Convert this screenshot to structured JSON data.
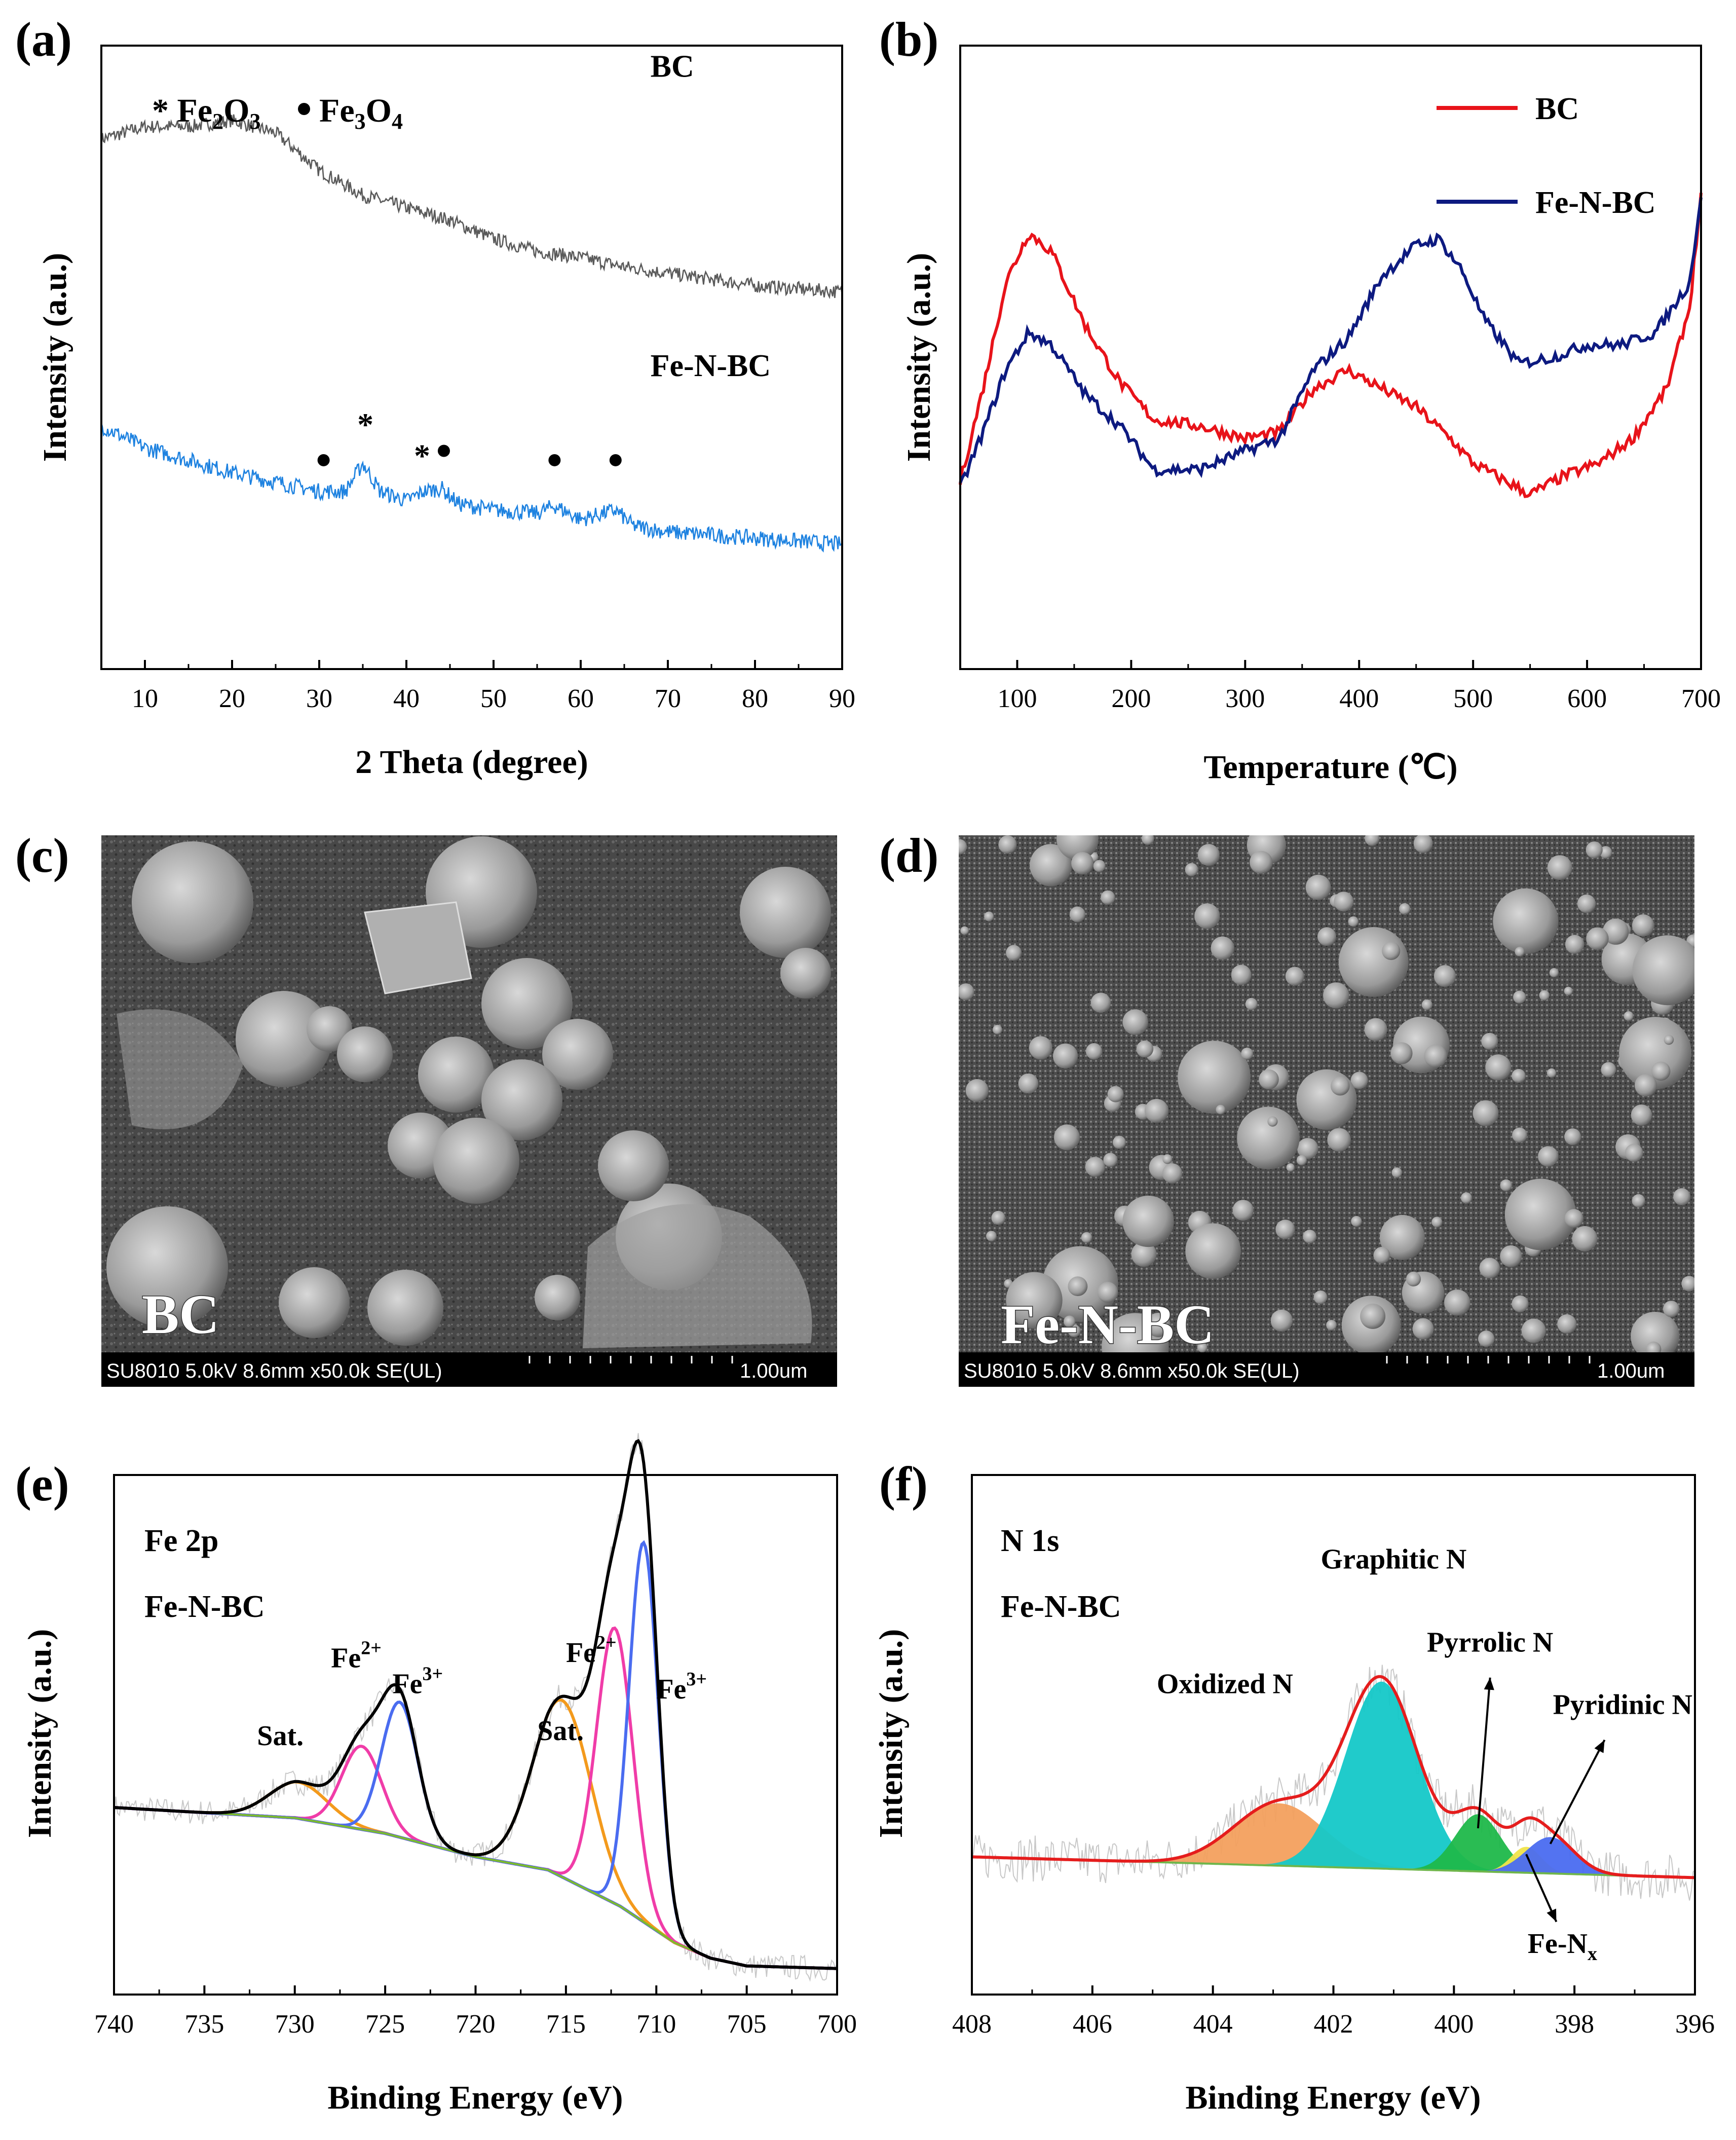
{
  "colors": {
    "bc_xrd": "#5a5a5a",
    "fenbc_xrd": "#1e82e0",
    "bc_tpd": "#e8131a",
    "fenbc_tpd": "#0d1a80",
    "fe2p_envelope": "#000000",
    "fe2p_fe3": "#4a6cf0",
    "fe2p_fe2": "#f03ca8",
    "fe2p_sat": "#f39a1c",
    "fe2p_bg": "#7dbb2c",
    "n1s_envelope": "#e51d1d",
    "n1s_oxidized": "#f3a05e",
    "n1s_graphitic": "#14c8c8",
    "n1s_pyrrolic": "#1fb84a",
    "n1s_fenx": "#f1e44a",
    "n1s_pyridinic": "#4a6cf0",
    "n1s_baseline": "#6fb64b"
  },
  "panels": {
    "a": {
      "label": "(a)"
    },
    "b": {
      "label": "(b)"
    },
    "c": {
      "label": "(c)",
      "sample": "BC",
      "info": "SU8010 5.0kV 8.6mm x50.0k SE(UL)",
      "scale": "1.00um"
    },
    "d": {
      "label": "(d)",
      "sample": "Fe-N-BC",
      "info": "SU8010 5.0kV 8.6mm x50.0k SE(UL)",
      "scale": "1.00um"
    },
    "e": {
      "label": "(e)"
    },
    "f": {
      "label": "(f)"
    }
  },
  "chart_data": [
    {
      "id": "a",
      "type": "line",
      "title": "",
      "xlabel": "2 Theta (degree)",
      "ylabel": "Intensity (a.u.)",
      "xlim": [
        5,
        90
      ],
      "xticks": [
        10,
        20,
        30,
        40,
        50,
        60,
        70,
        80,
        90
      ],
      "legend_note": {
        "star": "* Fe",
        "star_sub1": "2",
        "star_mid": "O",
        "star_sub2": "3",
        "dot": "Fe",
        "dot_sub1": "3",
        "dot_mid": "O",
        "dot_sub2": "4"
      },
      "series": [
        {
          "name": "BC",
          "x": [
            5,
            10,
            15,
            20,
            25,
            30,
            35,
            40,
            45,
            50,
            55,
            60,
            65,
            70,
            75,
            80,
            85,
            90
          ],
          "y": [
            0.85,
            0.87,
            0.87,
            0.88,
            0.86,
            0.8,
            0.76,
            0.74,
            0.72,
            0.69,
            0.67,
            0.66,
            0.645,
            0.635,
            0.625,
            0.615,
            0.61,
            0.605
          ]
        },
        {
          "name": "Fe-N-BC",
          "x": [
            5,
            10,
            15,
            20,
            25,
            30,
            33,
            35,
            37,
            40,
            42,
            44,
            46,
            50,
            55,
            57,
            60,
            64,
            66,
            70,
            75,
            80,
            85,
            90
          ],
          "y": [
            0.39,
            0.355,
            0.335,
            0.315,
            0.3,
            0.285,
            0.285,
            0.33,
            0.285,
            0.27,
            0.285,
            0.29,
            0.265,
            0.255,
            0.25,
            0.262,
            0.24,
            0.255,
            0.23,
            0.22,
            0.215,
            0.21,
            0.205,
            0.2
          ]
        }
      ],
      "markers": [
        {
          "symbol": "●",
          "x": 30.5,
          "y": 0.335
        },
        {
          "symbol": "*",
          "x": 35.3,
          "y": 0.395
        },
        {
          "symbol": "*",
          "x": 41.8,
          "y": 0.345
        },
        {
          "symbol": "●",
          "x": 44.3,
          "y": 0.35
        },
        {
          "symbol": "●",
          "x": 57.0,
          "y": 0.335
        },
        {
          "symbol": "●",
          "x": 64.0,
          "y": 0.335
        }
      ],
      "series_labels": [
        {
          "text": "BC",
          "x": 68,
          "y": 0.95
        },
        {
          "text": "Fe-N-BC",
          "x": 68,
          "y": 0.47
        }
      ]
    },
    {
      "id": "b",
      "type": "line",
      "title": "",
      "xlabel": "Temperature (℃)",
      "ylabel": "Intensity (a.u.)",
      "xlim": [
        50,
        700
      ],
      "xticks": [
        100,
        200,
        300,
        400,
        500,
        600,
        700
      ],
      "legend": [
        "BC",
        "Fe-N-BC"
      ],
      "series": [
        {
          "name": "BC",
          "x": [
            50,
            70,
            90,
            110,
            130,
            160,
            190,
            220,
            260,
            300,
            330,
            360,
            390,
            420,
            450,
            480,
            500,
            520,
            550,
            580,
            610,
            640,
            670,
            690,
            700
          ],
          "y": [
            0.3,
            0.45,
            0.62,
            0.7,
            0.67,
            0.55,
            0.46,
            0.4,
            0.39,
            0.37,
            0.38,
            0.45,
            0.48,
            0.45,
            0.42,
            0.37,
            0.33,
            0.31,
            0.28,
            0.31,
            0.33,
            0.37,
            0.45,
            0.58,
            0.76
          ]
        },
        {
          "name": "Fe-N-BC",
          "x": [
            50,
            70,
            90,
            110,
            130,
            160,
            190,
            220,
            260,
            300,
            330,
            360,
            390,
            420,
            450,
            470,
            490,
            510,
            540,
            570,
            600,
            630,
            660,
            690,
            700
          ],
          "y": [
            0.29,
            0.38,
            0.48,
            0.54,
            0.52,
            0.44,
            0.39,
            0.32,
            0.32,
            0.35,
            0.37,
            0.48,
            0.53,
            0.63,
            0.68,
            0.69,
            0.64,
            0.56,
            0.49,
            0.5,
            0.52,
            0.52,
            0.54,
            0.62,
            0.76
          ]
        }
      ]
    },
    {
      "id": "e",
      "type": "line",
      "title": "Fe 2p",
      "subtitle": "Fe-N-BC",
      "xlabel": "Binding Energy (eV)",
      "ylabel": "Intensity (a.u.)",
      "xlim": [
        740,
        700
      ],
      "xticks": [
        740,
        735,
        730,
        725,
        720,
        715,
        710,
        705,
        700
      ],
      "background": {
        "x": [
          740,
          730,
          725,
          720,
          716,
          712,
          709,
          707,
          705,
          700
        ],
        "y": [
          0.36,
          0.34,
          0.31,
          0.265,
          0.24,
          0.17,
          0.1,
          0.07,
          0.055,
          0.05
        ]
      },
      "peaks": [
        {
          "name": "Sat.",
          "center": 729.8,
          "height": 0.07,
          "width": 1.6,
          "color_key": "fe2p_sat"
        },
        {
          "name": "Fe2+",
          "center": 726.3,
          "height": 0.16,
          "width": 1.1,
          "color_key": "fe2p_fe2"
        },
        {
          "name": "Fe3+",
          "center": 724.2,
          "height": 0.26,
          "width": 1.0,
          "color_key": "fe2p_fe3"
        },
        {
          "name": "Sat.",
          "center": 715.2,
          "height": 0.34,
          "width": 1.6,
          "color_key": "fe2p_sat"
        },
        {
          "name": "Fe2+",
          "center": 712.3,
          "height": 0.53,
          "width": 1.0,
          "color_key": "fe2p_fe2"
        },
        {
          "name": "Fe3+",
          "center": 710.7,
          "height": 0.73,
          "width": 0.8,
          "color_key": "fe2p_fe3"
        }
      ],
      "annotations": [
        {
          "text": "Sat.",
          "sup": "",
          "x": 730.8,
          "y": 0.48,
          "color_key": "fe2p_sat"
        },
        {
          "text": "Fe",
          "sup": "2+",
          "x": 726.6,
          "y": 0.63,
          "color_key": "fe2p_fe2"
        },
        {
          "text": "Fe",
          "sup": "3+",
          "x": 723.2,
          "y": 0.58,
          "color_key": "fe2p_fe3"
        },
        {
          "text": "Sat.",
          "sup": "",
          "x": 715.3,
          "y": 0.49,
          "color_key": "fe2p_sat"
        },
        {
          "text": "Fe",
          "sup": "2+",
          "x": 713.6,
          "y": 0.64,
          "color_key": "fe2p_fe2"
        },
        {
          "text": "Fe",
          "sup": "3+",
          "x": 708.6,
          "y": 0.57,
          "color_key": "fe2p_fe3"
        }
      ]
    },
    {
      "id": "f",
      "type": "line",
      "title": "N 1s",
      "subtitle": "Fe-N-BC",
      "xlabel": "Binding Energy (eV)",
      "ylabel": "Intensity (a.u.)",
      "xlim": [
        408,
        396
      ],
      "xticks": [
        408,
        406,
        404,
        402,
        400,
        398,
        396
      ],
      "background": {
        "x": [
          408,
          396
        ],
        "y": [
          0.265,
          0.225
        ]
      },
      "peaks": [
        {
          "name": "Oxidized N",
          "center": 402.9,
          "height": 0.12,
          "width": 0.75,
          "color_key": "n1s_oxidized"
        },
        {
          "name": "Graphitic N",
          "center": 401.2,
          "height": 0.36,
          "width": 0.6,
          "color_key": "n1s_graphitic"
        },
        {
          "name": "Pyrrolic N",
          "center": 399.6,
          "height": 0.11,
          "width": 0.38,
          "color_key": "n1s_pyrrolic"
        },
        {
          "name": "Fe-Nx",
          "center": 398.8,
          "height": 0.05,
          "width": 0.25,
          "color_key": "n1s_fenx"
        },
        {
          "name": "Pyridinic N",
          "center": 398.4,
          "height": 0.07,
          "width": 0.4,
          "color_key": "n1s_pyridinic"
        }
      ],
      "annotations": [
        {
          "text": "Oxidized N",
          "sub": "",
          "x": 403.8,
          "y": 0.58
        },
        {
          "text": "Graphitic N",
          "sub": "",
          "x": 401.0,
          "y": 0.82
        },
        {
          "text": "Pyrrolic N",
          "sub": "",
          "x": 399.4,
          "y": 0.66
        },
        {
          "text": "Pyridinic N",
          "sub": "",
          "x": 397.2,
          "y": 0.54
        },
        {
          "text": "Fe-N",
          "sub": "x",
          "x": 398.2,
          "y": 0.08
        }
      ]
    }
  ]
}
